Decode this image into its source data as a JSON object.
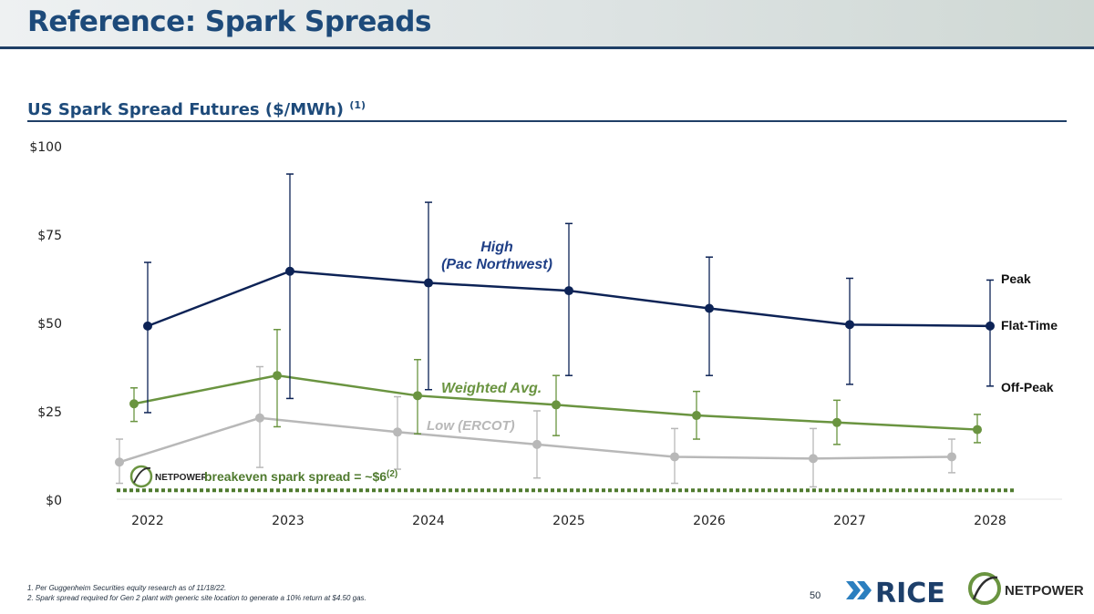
{
  "header": {
    "title": "Reference: Spark Spreads"
  },
  "subtitle": {
    "text": "US Spark Spread Futures ($/MWh)",
    "note": "(1)"
  },
  "chart_data": {
    "type": "line",
    "categories": [
      "2022",
      "2023",
      "2024",
      "2025",
      "2026",
      "2027",
      "2028"
    ],
    "y_ticks": [
      "$0",
      "$25",
      "$50",
      "$75",
      "$100"
    ],
    "ylim": [
      0,
      100
    ],
    "grid": false,
    "series": [
      {
        "name": "High (Pac Northwest)",
        "label_line1": "High",
        "label_line2": "(Pac Northwest)",
        "color": "#0d2356",
        "mid": [
          49,
          64.5,
          61.2,
          59,
          54,
          49.4,
          49
        ],
        "hi": [
          67,
          92,
          84,
          78,
          68.5,
          62.5,
          62
        ],
        "lo": [
          24.5,
          28.5,
          31,
          35,
          35,
          32.5,
          32
        ]
      },
      {
        "name": "Weighted Avg.",
        "label": "Weighted Avg.",
        "color": "#6a9440",
        "mid": [
          27,
          35,
          29.3,
          26.7,
          23.7,
          21.7,
          19.7
        ],
        "hi": [
          31.5,
          48,
          39.5,
          35,
          30.5,
          28,
          24
        ],
        "lo": [
          22,
          20.5,
          18.5,
          18,
          17,
          15.5,
          16
        ]
      },
      {
        "name": "Low (ERCOT)",
        "label": "Low (ERCOT)",
        "color": "#b8b8b8",
        "mid": [
          10.5,
          23,
          19,
          15.5,
          12,
          11.5,
          12
        ],
        "hi": [
          17,
          37.5,
          29,
          25,
          20,
          20,
          17
        ],
        "lo": [
          4.5,
          9,
          8.5,
          6,
          4.5,
          3.5,
          7.5
        ]
      }
    ],
    "right_labels": {
      "peak": "Peak",
      "flat": "Flat-Time",
      "offpeak": "Off-Peak"
    },
    "breakeven": {
      "value": 2.5,
      "text": "breakeven spark spread = ~$6",
      "note": "(2)",
      "logo_text": "NETPOWER",
      "color": "#4f7a2e"
    }
  },
  "footnotes": [
    "1.  Per Guggenheim Securities equity research as of 11/18/22.",
    "2.  Spark spread required for Gen 2 plant with generic site location to generate a 10% return at $4.50 gas."
  ],
  "page_number": "50",
  "logos": {
    "rice": "RICE",
    "netpower": "NETPOWER"
  }
}
